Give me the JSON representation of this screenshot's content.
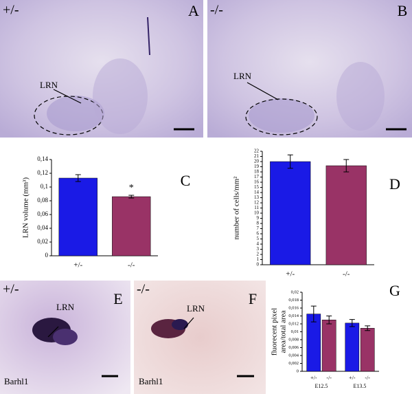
{
  "images": [
    {
      "label": "A",
      "genotype": "+/-",
      "region": "LRN"
    },
    {
      "label": "B",
      "genotype": "-/-",
      "region": "LRN"
    },
    {
      "label": "E",
      "genotype": "+/-",
      "region": "LRN",
      "stain": "Barhl1"
    },
    {
      "label": "F",
      "genotype": "-/-",
      "region": "LRN",
      "stain": "Barhl1"
    }
  ],
  "chart_data": [
    {
      "type": "bar",
      "label": "C",
      "ylabel": "LRN volume (mm³)",
      "categories": [
        "+/-",
        "-/-"
      ],
      "values": [
        0.113,
        0.086
      ],
      "errors": [
        0.005,
        0.002
      ],
      "colors": [
        "#1a1ae6",
        "#993366"
      ],
      "annotation": "*",
      "ylim": [
        0,
        0.14
      ],
      "yticks": [
        0,
        {
          "value": 0.02,
          "label": "0,02"
        },
        {
          "value": 0.04,
          "label": "0,04"
        },
        {
          "value": 0.06,
          "label": "0,06"
        },
        {
          "value": 0.08,
          "label": "0,08"
        },
        {
          "value": 0.1,
          "label": "0,1"
        },
        {
          "value": 0.12,
          "label": "0,12"
        },
        {
          "value": 0.14,
          "label": "0,14"
        }
      ]
    },
    {
      "type": "bar",
      "label": "D",
      "ylabel": "number of cells/mm²",
      "categories": [
        "+/-",
        "-/-"
      ],
      "values": [
        20,
        19.2
      ],
      "errors": [
        1.3,
        1.2
      ],
      "colors": [
        "#1a1ae6",
        "#993366"
      ],
      "ylim": [
        0,
        22
      ],
      "yticks": [
        0,
        1,
        2,
        3,
        4,
        5,
        6,
        7,
        8,
        9,
        10,
        11,
        12,
        13,
        14,
        15,
        16,
        17,
        18,
        19,
        20,
        21,
        22
      ]
    },
    {
      "type": "bar",
      "label": "G",
      "ylabel": [
        "fluorecent pixel",
        "area/total area"
      ],
      "categories": [
        "E12.5",
        "E13.5"
      ],
      "series": [
        {
          "name": "+/-",
          "color": "#1a1ae6",
          "values": [
            0.0145,
            0.0122
          ],
          "errors": [
            0.002,
            0.0009
          ]
        },
        {
          "name": "-/-",
          "color": "#993366",
          "values": [
            0.013,
            0.0109
          ],
          "errors": [
            0.001,
            0.0006
          ]
        }
      ],
      "ylim": [
        0,
        0.02
      ],
      "yticks": [
        0,
        {
          "value": 0.002,
          "label": "0,002"
        },
        {
          "value": 0.004,
          "label": "0,004"
        },
        {
          "value": 0.006,
          "label": "0,006"
        },
        {
          "value": 0.008,
          "label": "0,008"
        },
        {
          "value": 0.01,
          "label": "0,01"
        },
        {
          "value": 0.012,
          "label": "0,012"
        },
        {
          "value": 0.014,
          "label": "0,014"
        },
        {
          "value": 0.016,
          "label": "0,016"
        },
        {
          "value": 0.018,
          "label": "0,018"
        },
        {
          "value": 0.02,
          "label": "0,02"
        }
      ]
    }
  ]
}
